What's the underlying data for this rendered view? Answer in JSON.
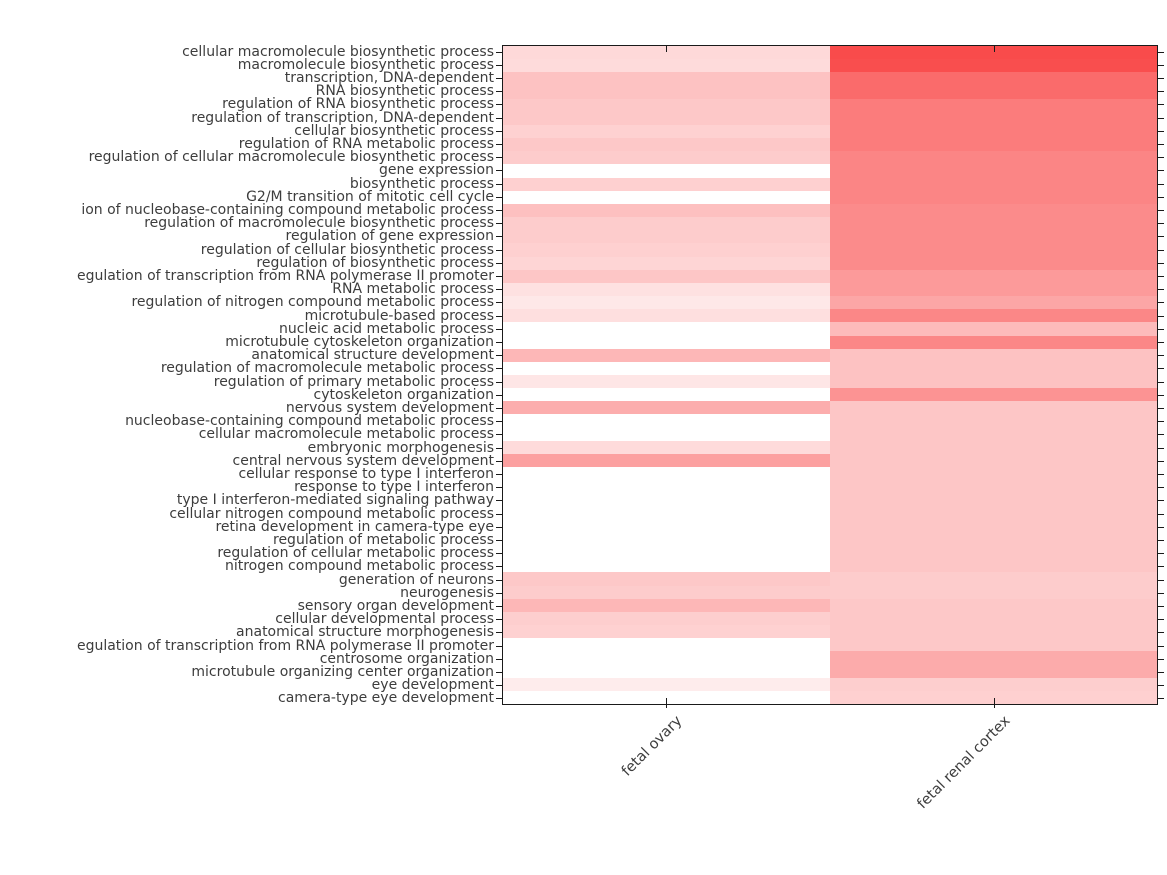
{
  "figure": {
    "background_color": "#ffffff",
    "axis_color": "#1a1a1a",
    "tick_label_color": "#3d3d3d"
  },
  "chart_data": {
    "type": "heatmap",
    "title": "",
    "xlabel": "",
    "ylabel": "",
    "legend": "none",
    "grid": false,
    "colorbar_shown": false,
    "colormap": {
      "low": "#ffffff",
      "high": "#f94141",
      "scale_note": "cell values are estimated relative intensities 0-1 read from color saturation; no colorbar is shown in the figure"
    },
    "columns": [
      "fetal ovary",
      "fetal renal cortex"
    ],
    "rows": [
      "cellular macromolecule biosynthetic process",
      "macromolecule biosynthetic process",
      "transcription, DNA-dependent",
      "RNA biosynthetic process",
      "regulation of RNA biosynthetic process",
      "regulation of transcription, DNA-dependent",
      "cellular biosynthetic process",
      "regulation of RNA metabolic process",
      "regulation of cellular macromolecule biosynthetic process",
      "gene expression",
      "biosynthetic process",
      "G2/M transition of mitotic cell cycle",
      "ion of nucleobase-containing compound metabolic process",
      "regulation of macromolecule biosynthetic process",
      "regulation of gene expression",
      "regulation of cellular biosynthetic process",
      "regulation of biosynthetic process",
      "egulation of transcription from RNA polymerase II promoter",
      "RNA metabolic process",
      "regulation of nitrogen compound metabolic process",
      "microtubule-based process",
      "nucleic acid metabolic process",
      "microtubule cytoskeleton organization",
      "anatomical structure development",
      "regulation of macromolecule metabolic process",
      "regulation of primary metabolic process",
      "cytoskeleton organization",
      "nervous system development",
      "nucleobase-containing compound metabolic process",
      "cellular macromolecule metabolic process",
      "embryonic morphogenesis",
      "central nervous system development",
      "cellular response to type I interferon",
      "response to type I interferon",
      "type I interferon-mediated signaling pathway",
      "cellular nitrogen compound metabolic process",
      "retina development in camera-type eye",
      "regulation of metabolic process",
      "regulation of cellular metabolic process",
      "nitrogen compound metabolic process",
      "generation of neurons",
      "neurogenesis",
      "sensory organ development",
      "cellular developmental process",
      "anatomical structure morphogenesis",
      "egulation of transcription from RNA polymerase II promoter",
      "centrosome organization",
      "microtubule organizing center organization",
      "eye development",
      "camera-type eye development"
    ],
    "series": [
      {
        "name": "fetal ovary",
        "values": [
          0.2,
          0.19,
          0.32,
          0.32,
          0.29,
          0.29,
          0.24,
          0.29,
          0.27,
          0,
          0.25,
          0,
          0.33,
          0.27,
          0.27,
          0.25,
          0.22,
          0.3,
          0.16,
          0.12,
          0.17,
          0,
          0,
          0.38,
          0,
          0.13,
          0,
          0.43,
          0,
          0,
          0.19,
          0.5,
          0,
          0,
          0,
          0,
          0,
          0,
          0,
          0,
          0.29,
          0.27,
          0.38,
          0.26,
          0.24,
          0,
          0,
          0,
          0.1,
          0
        ]
      },
      {
        "name": "fetal renal cortex",
        "values": [
          0.95,
          0.93,
          0.78,
          0.78,
          0.69,
          0.69,
          0.69,
          0.69,
          0.64,
          0.64,
          0.64,
          0.64,
          0.61,
          0.61,
          0.61,
          0.61,
          0.61,
          0.53,
          0.53,
          0.47,
          0.63,
          0.36,
          0.63,
          0.32,
          0.32,
          0.32,
          0.57,
          0.3,
          0.3,
          0.3,
          0.3,
          0.3,
          0.3,
          0.3,
          0.3,
          0.3,
          0.3,
          0.3,
          0.3,
          0.3,
          0.27,
          0.27,
          0.29,
          0.29,
          0.29,
          0.29,
          0.44,
          0.44,
          0.26,
          0.25
        ]
      }
    ]
  }
}
